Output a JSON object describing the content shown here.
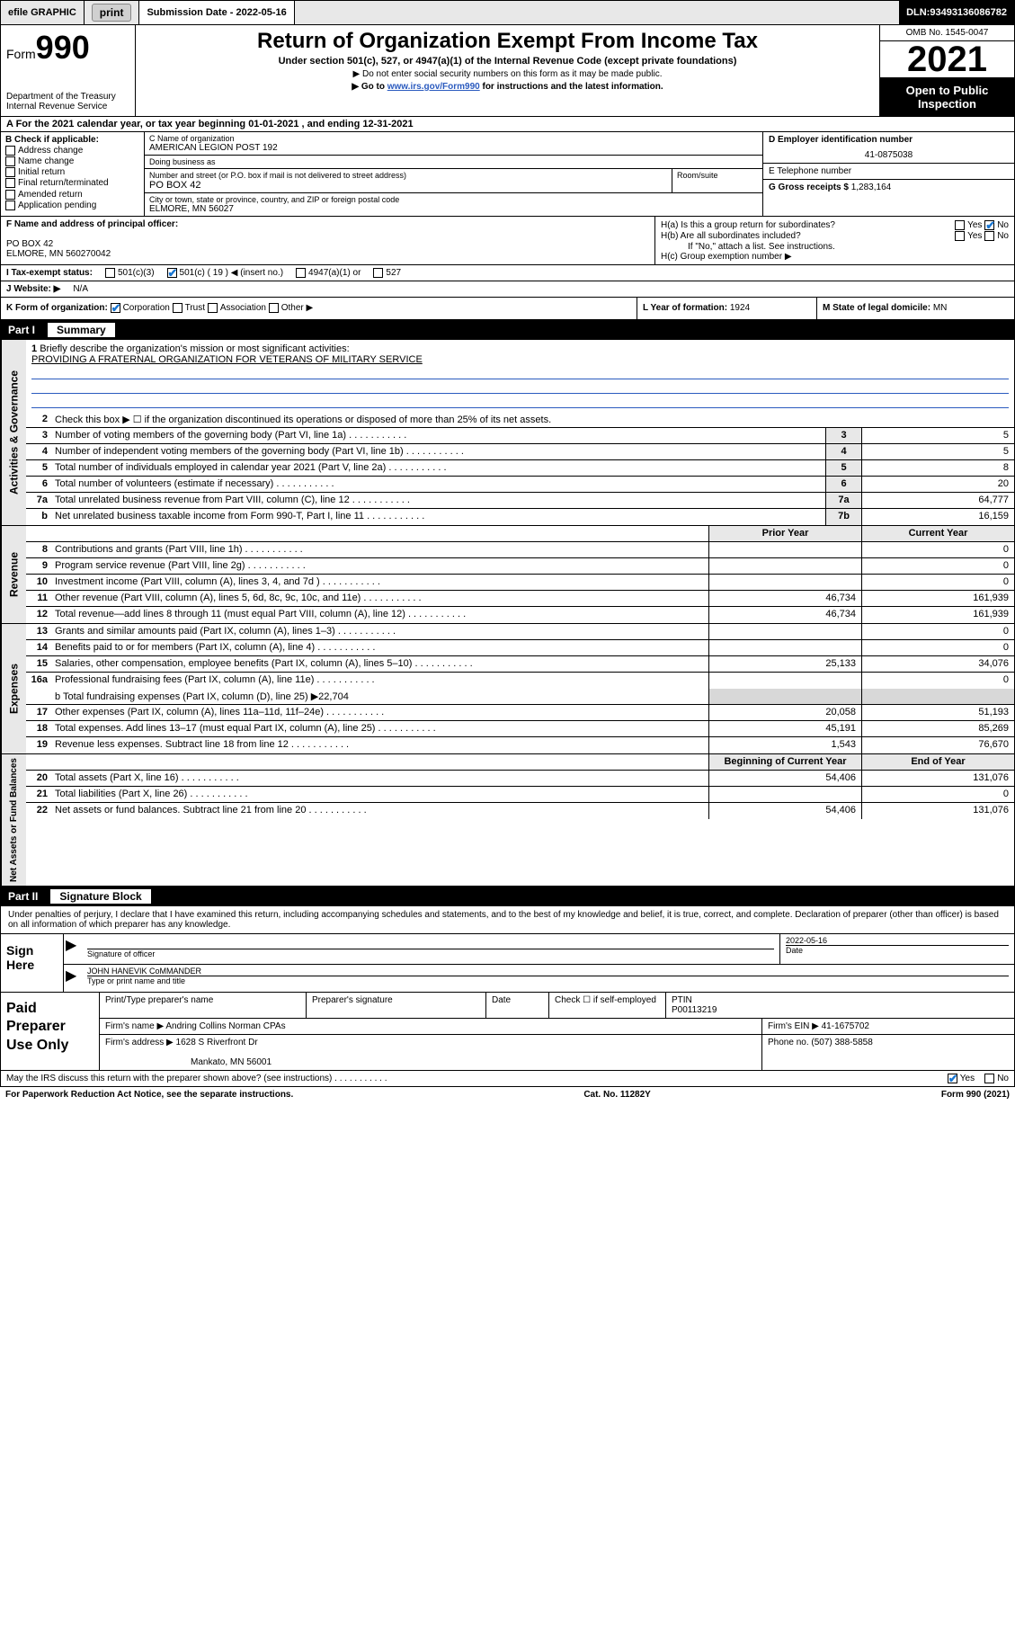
{
  "colors": {
    "header_bg": "#e8e8e8",
    "black": "#000000",
    "link_blue": "#2b5bbf",
    "check_blue": "#1976d2",
    "grey_cell": "#d8d8d8"
  },
  "topbar": {
    "efile": "efile GRAPHIC",
    "print": "print",
    "submission_label": "Submission Date - ",
    "submission_date": "2022-05-16",
    "dln_label": "DLN: ",
    "dln": "93493136086782"
  },
  "header": {
    "form_label": "Form",
    "form_number": "990",
    "dept": "Department of the Treasury",
    "irs": "Internal Revenue Service",
    "title": "Return of Organization Exempt From Income Tax",
    "sub1": "Under section 501(c), 527, or 4947(a)(1) of the Internal Revenue Code (except private foundations)",
    "sub2": "▶ Do not enter social security numbers on this form as it may be made public.",
    "sub3_pre": "▶ Go to ",
    "sub3_link": "www.irs.gov/Form990",
    "sub3_post": " for instructions and the latest information.",
    "omb": "OMB No. 1545-0047",
    "year": "2021",
    "open": "Open to Public Inspection"
  },
  "rowA": {
    "text": "A For the 2021 calendar year, or tax year beginning 01-01-2021   , and ending 12-31-2021"
  },
  "colB": {
    "label": "B Check if applicable:",
    "items": [
      "Address change",
      "Name change",
      "Initial return",
      "Final return/terminated",
      "Amended return",
      "Application pending"
    ]
  },
  "colC": {
    "name_label": "C Name of organization",
    "name": "AMERICAN LEGION POST 192",
    "dba_label": "Doing business as",
    "dba": "",
    "addr_label": "Number and street (or P.O. box if mail is not delivered to street address)",
    "addr": "PO BOX 42",
    "room_label": "Room/suite",
    "city_label": "City or town, state or province, country, and ZIP or foreign postal code",
    "city": "ELMORE, MN  56027"
  },
  "colD": {
    "label": "D Employer identification number",
    "ein": "41-0875038"
  },
  "colE": {
    "label": "E Telephone number",
    "val": ""
  },
  "colG": {
    "label": "G Gross receipts $ ",
    "val": "1,283,164"
  },
  "colF": {
    "label": "F Name and address of principal officer:",
    "line1": "PO BOX 42",
    "line2": "ELMORE, MN  560270042"
  },
  "colH": {
    "a_label": "H(a)  Is this a group return for subordinates?",
    "a_yes": "Yes",
    "a_no": "No",
    "b_label": "H(b)  Are all subordinates included?",
    "b_note": "If \"No,\" attach a list. See instructions.",
    "c_label": "H(c)  Group exemption number ▶"
  },
  "rowI": {
    "label": "I   Tax-exempt status:",
    "opt1": "501(c)(3)",
    "opt2_pre": "501(c) ( ",
    "opt2_num": "19",
    "opt2_post": " ) ◀ (insert no.)",
    "opt3": "4947(a)(1) or",
    "opt4": "527"
  },
  "rowJ": {
    "label": "J   Website: ▶ ",
    "val": "N/A"
  },
  "rowK": {
    "label": "K Form of organization:",
    "opts": [
      "Corporation",
      "Trust",
      "Association",
      "Other ▶"
    ],
    "L_label": "L Year of formation: ",
    "L_val": "1924",
    "M_label": "M State of legal domicile: ",
    "M_val": "MN"
  },
  "part1": {
    "hdr": "Part I",
    "title": "Summary",
    "sec1_label": "Activities & Governance",
    "line1_label": "Briefly describe the organization's mission or most significant activities:",
    "line1_text": "PROVIDING A FRATERNAL ORGANIZATION FOR VETERANS OF MILITARY SERVICE",
    "line2": "Check this box ▶ ☐  if the organization discontinued its operations or disposed of more than 25% of its net assets.",
    "rows_ag": [
      {
        "n": "3",
        "d": "Number of voting members of the governing body (Part VI, line 1a)",
        "box": "3",
        "v": "5"
      },
      {
        "n": "4",
        "d": "Number of independent voting members of the governing body (Part VI, line 1b)",
        "box": "4",
        "v": "5"
      },
      {
        "n": "5",
        "d": "Total number of individuals employed in calendar year 2021 (Part V, line 2a)",
        "box": "5",
        "v": "8"
      },
      {
        "n": "6",
        "d": "Total number of volunteers (estimate if necessary)",
        "box": "6",
        "v": "20"
      },
      {
        "n": "7a",
        "d": "Total unrelated business revenue from Part VIII, column (C), line 12",
        "box": "7a",
        "v": "64,777"
      },
      {
        "n": "b",
        "d": "Net unrelated business taxable income from Form 990-T, Part I, line 11",
        "box": "7b",
        "v": "16,159"
      }
    ],
    "col_prior": "Prior Year",
    "col_current": "Current Year",
    "sec2_label": "Revenue",
    "rows_rev": [
      {
        "n": "8",
        "d": "Contributions and grants (Part VIII, line 1h)",
        "p": "",
        "c": "0"
      },
      {
        "n": "9",
        "d": "Program service revenue (Part VIII, line 2g)",
        "p": "",
        "c": "0"
      },
      {
        "n": "10",
        "d": "Investment income (Part VIII, column (A), lines 3, 4, and 7d )",
        "p": "",
        "c": "0"
      },
      {
        "n": "11",
        "d": "Other revenue (Part VIII, column (A), lines 5, 6d, 8c, 9c, 10c, and 11e)",
        "p": "46,734",
        "c": "161,939"
      },
      {
        "n": "12",
        "d": "Total revenue—add lines 8 through 11 (must equal Part VIII, column (A), line 12)",
        "p": "46,734",
        "c": "161,939"
      }
    ],
    "sec3_label": "Expenses",
    "rows_exp": [
      {
        "n": "13",
        "d": "Grants and similar amounts paid (Part IX, column (A), lines 1–3)",
        "p": "",
        "c": "0"
      },
      {
        "n": "14",
        "d": "Benefits paid to or for members (Part IX, column (A), line 4)",
        "p": "",
        "c": "0"
      },
      {
        "n": "15",
        "d": "Salaries, other compensation, employee benefits (Part IX, column (A), lines 5–10)",
        "p": "25,133",
        "c": "34,076"
      },
      {
        "n": "16a",
        "d": "Professional fundraising fees (Part IX, column (A), line 11e)",
        "p": "",
        "c": "0"
      }
    ],
    "line16b": "b   Total fundraising expenses (Part IX, column (D), line 25) ▶22,704",
    "rows_exp2": [
      {
        "n": "17",
        "d": "Other expenses (Part IX, column (A), lines 11a–11d, 11f–24e)",
        "p": "20,058",
        "c": "51,193"
      },
      {
        "n": "18",
        "d": "Total expenses. Add lines 13–17 (must equal Part IX, column (A), line 25)",
        "p": "45,191",
        "c": "85,269"
      },
      {
        "n": "19",
        "d": "Revenue less expenses. Subtract line 18 from line 12",
        "p": "1,543",
        "c": "76,670"
      }
    ],
    "sec4_label": "Net Assets or Fund Balances",
    "col_begin": "Beginning of Current Year",
    "col_end": "End of Year",
    "rows_na": [
      {
        "n": "20",
        "d": "Total assets (Part X, line 16)",
        "p": "54,406",
        "c": "131,076"
      },
      {
        "n": "21",
        "d": "Total liabilities (Part X, line 26)",
        "p": "",
        "c": "0"
      },
      {
        "n": "22",
        "d": "Net assets or fund balances. Subtract line 21 from line 20",
        "p": "54,406",
        "c": "131,076"
      }
    ]
  },
  "part2": {
    "hdr": "Part II",
    "title": "Signature Block",
    "intro": "Under penalties of perjury, I declare that I have examined this return, including accompanying schedules and statements, and to the best of my knowledge and belief, it is true, correct, and complete. Declaration of preparer (other than officer) is based on all information of which preparer has any knowledge.",
    "sign_here": "Sign Here",
    "sig_officer": "Signature of officer",
    "sig_date_label": "Date",
    "sig_date": "2022-05-16",
    "officer_name": "JOHN HANEVIK CoMMANDER",
    "officer_sub": "Type or print name and title",
    "paid": "Paid Preparer Use Only",
    "p_name_label": "Print/Type preparer's name",
    "p_sig_label": "Preparer's signature",
    "p_date_label": "Date",
    "p_check": "Check ☐ if self-employed",
    "ptin_label": "PTIN",
    "ptin": "P00113219",
    "firm_name_label": "Firm's name    ▶ ",
    "firm_name": "Andring Collins Norman CPAs",
    "firm_ein_label": "Firm's EIN ▶ ",
    "firm_ein": "41-1675702",
    "firm_addr_label": "Firm's address ▶ ",
    "firm_addr1": "1628 S Riverfront Dr",
    "firm_addr2": "Mankato, MN  56001",
    "firm_phone_label": "Phone no. ",
    "firm_phone": "(507) 388-5858",
    "discuss": "May the IRS discuss this return with the preparer shown above? (see instructions)",
    "yes": "Yes",
    "no": "No"
  },
  "footer": {
    "paperwork": "For Paperwork Reduction Act Notice, see the separate instructions.",
    "cat": "Cat. No. 11282Y",
    "form": "Form 990 (2021)"
  }
}
